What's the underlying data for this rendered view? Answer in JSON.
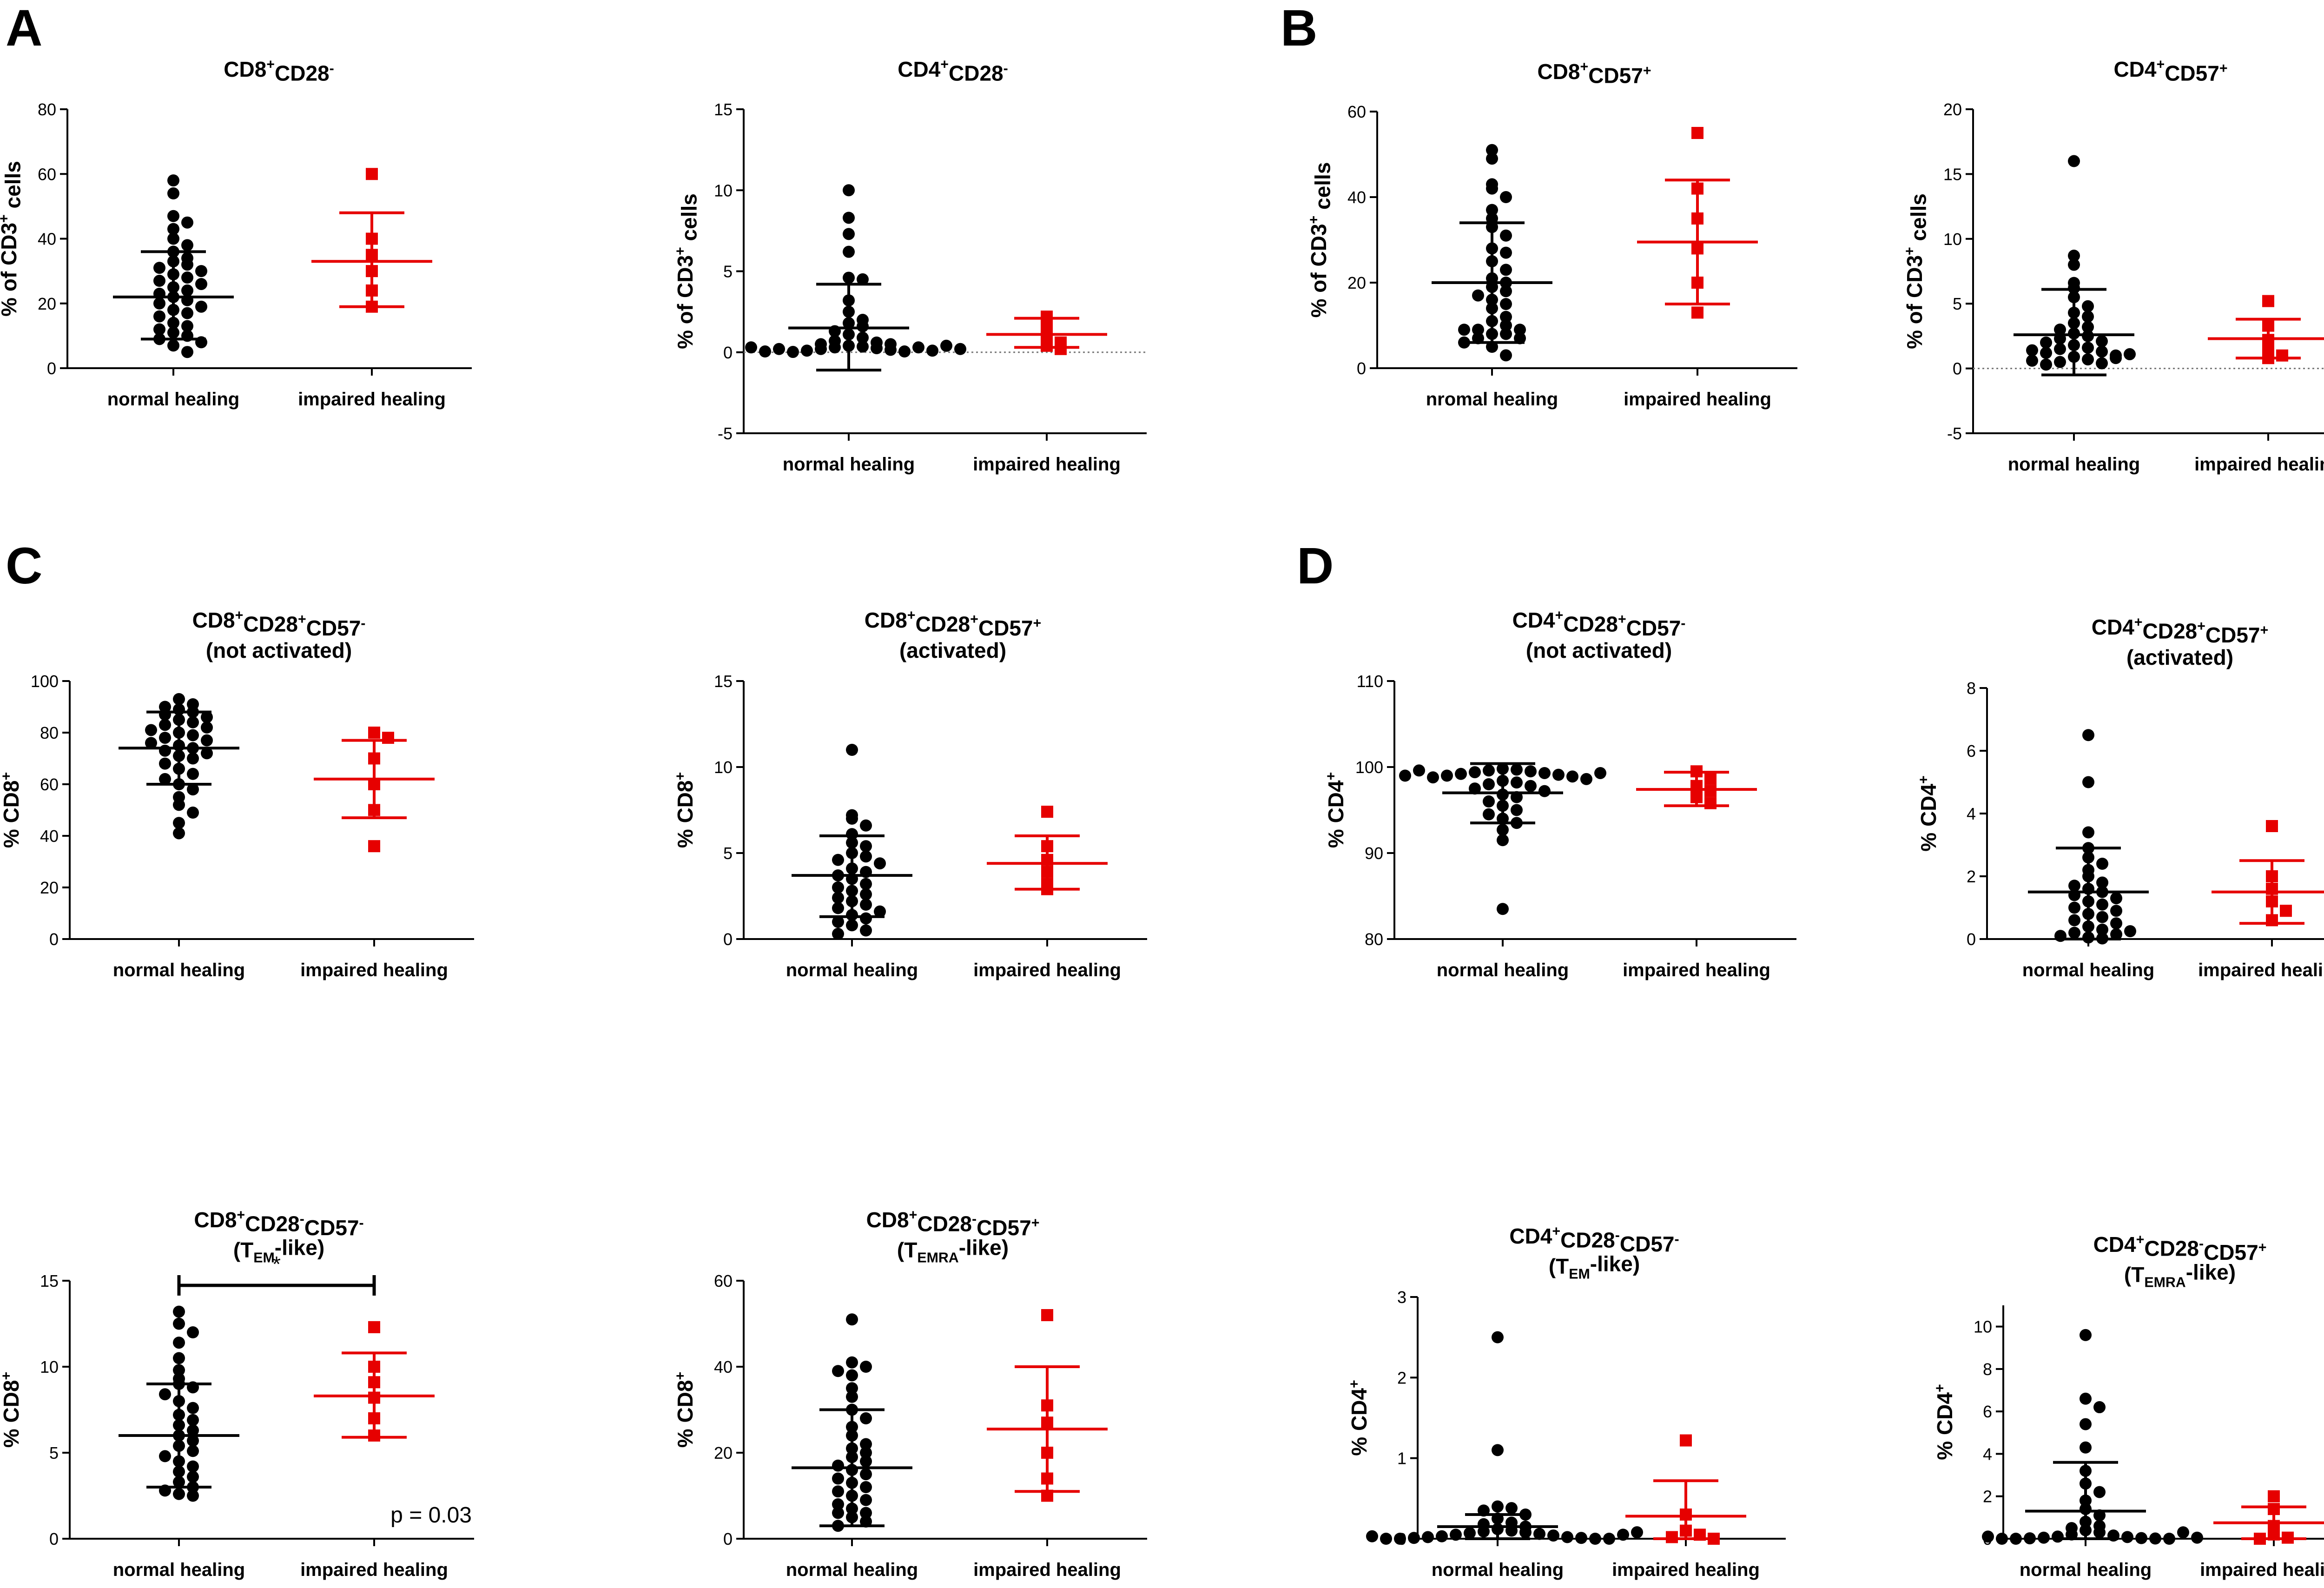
{
  "panel_letters": [
    "A",
    "B",
    "C",
    "D"
  ],
  "colors": {
    "normal": "#000000",
    "impaired": "#e60000",
    "zero_line": "#777777"
  },
  "chart_data": [
    {
      "id": "cd8-cd28neg",
      "type": "scatter",
      "panel": "A",
      "title": [
        "CD8",
        "+",
        "CD28",
        "-"
      ],
      "ylabel": [
        "% of CD3",
        "+",
        " cells"
      ],
      "ylim": [
        0,
        80
      ],
      "yticks": [
        0,
        20,
        40,
        60,
        80
      ],
      "categories": [
        "normal healing",
        "impaired healing"
      ],
      "series": [
        {
          "name": "normal healing",
          "marker": "circle",
          "mean": 22,
          "sd_low": 9,
          "sd_high": 36,
          "values": [
            58,
            54,
            47,
            45,
            43,
            40,
            38,
            36,
            34,
            33,
            32,
            31,
            30,
            29,
            28,
            27,
            26,
            25,
            24,
            23,
            22,
            21,
            20,
            19,
            18,
            17,
            16,
            14,
            13,
            12,
            11,
            10,
            9,
            8,
            7,
            5
          ]
        },
        {
          "name": "impaired healing",
          "marker": "square",
          "mean": 33,
          "sd_low": 19,
          "sd_high": 48,
          "values": [
            60,
            40,
            35,
            30,
            24,
            19
          ]
        }
      ]
    },
    {
      "id": "cd4-cd28neg",
      "type": "scatter",
      "panel": "A",
      "title": [
        "CD4",
        "+",
        "CD28",
        "-"
      ],
      "ylabel": [
        "% of CD3",
        "+",
        " cells"
      ],
      "ylim": [
        -5,
        15
      ],
      "yticks": [
        -5,
        0,
        5,
        10,
        15
      ],
      "zero_line": true,
      "categories": [
        "normal healing",
        "impaired healing"
      ],
      "series": [
        {
          "name": "normal healing",
          "marker": "circle",
          "mean": 1.5,
          "sd_low": -1.1,
          "sd_high": 4.2,
          "values": [
            10,
            8.3,
            7.3,
            6.2,
            4.6,
            4.5,
            3.2,
            2.5,
            2,
            1.8,
            1.6,
            1.3,
            1.1,
            0.9,
            0.7,
            0.6,
            0.5,
            0.4,
            0.35,
            0.3,
            0.25,
            0.2,
            0.15,
            0.1,
            0.05,
            0.02,
            0.3,
            0.2,
            0.1,
            0.05,
            0.5,
            0.4,
            0.3,
            0.2
          ]
        },
        {
          "name": "impaired healing",
          "marker": "square",
          "mean": 1.1,
          "sd_low": 0.3,
          "sd_high": 2.1,
          "values": [
            2.2,
            1.8,
            1.1,
            0.6,
            0.4,
            0.2
          ]
        }
      ]
    },
    {
      "id": "cd8-cd57pos",
      "type": "scatter",
      "panel": "B",
      "title": [
        "CD8",
        "+",
        "CD57",
        "+"
      ],
      "ylabel": [
        "% of CD3",
        "+",
        " cells"
      ],
      "ylim": [
        0,
        60
      ],
      "yticks": [
        0,
        20,
        40,
        60
      ],
      "categories": [
        "nromal healing",
        "impaired healing"
      ],
      "series": [
        {
          "name": "normal healing",
          "marker": "circle",
          "mean": 20,
          "sd_low": 6,
          "sd_high": 34,
          "values": [
            51,
            49,
            43,
            42,
            40,
            37,
            35,
            33,
            31,
            28,
            27,
            25,
            23,
            21,
            20,
            19,
            18,
            17,
            16,
            15,
            14,
            12,
            11,
            10,
            9,
            9,
            9,
            8,
            8,
            7,
            7,
            6,
            5,
            3
          ]
        },
        {
          "name": "impaired healing",
          "marker": "square",
          "mean": 29.5,
          "sd_low": 15,
          "sd_high": 44,
          "values": [
            55,
            42,
            35,
            28,
            20,
            13
          ]
        }
      ]
    },
    {
      "id": "cd4-cd57pos",
      "type": "scatter",
      "panel": "B",
      "title": [
        "CD4",
        "+",
        "CD57",
        "+"
      ],
      "ylabel": [
        "% of CD3",
        "+",
        " cells"
      ],
      "ylim": [
        -5,
        20
      ],
      "yticks": [
        -5,
        0,
        5,
        10,
        15,
        20
      ],
      "zero_line": true,
      "categories": [
        "normal healing",
        "impaired healing"
      ],
      "series": [
        {
          "name": "normal healing",
          "marker": "circle",
          "mean": 2.6,
          "sd_low": -0.5,
          "sd_high": 6.1,
          "values": [
            16,
            8.7,
            8,
            6.6,
            6.2,
            5.5,
            4.8,
            4.3,
            4,
            3.5,
            3.2,
            3,
            2.7,
            2.5,
            2.3,
            2.1,
            2,
            1.8,
            1.6,
            1.5,
            1.3,
            1.2,
            1,
            0.9,
            0.7,
            0.5,
            0.4,
            0.3,
            1.4,
            1.1,
            0.8,
            0.6
          ]
        },
        {
          "name": "impaired healing",
          "marker": "square",
          "mean": 2.3,
          "sd_low": 0.8,
          "sd_high": 3.8,
          "values": [
            5.2,
            3.3,
            2.2,
            1.5,
            1,
            0.8
          ]
        }
      ]
    },
    {
      "id": "cd8-notact",
      "type": "scatter",
      "panel": "C",
      "title": [
        "CD8",
        "+",
        "CD28",
        "+",
        "CD57",
        "-"
      ],
      "subtitle": "(not activated)",
      "ylabel": [
        "% CD8",
        "+",
        ""
      ],
      "ylim": [
        0,
        100
      ],
      "yticks": [
        0,
        20,
        40,
        60,
        80,
        100
      ],
      "categories": [
        "normal healing",
        "impaired healing"
      ],
      "series": [
        {
          "name": "normal healing",
          "marker": "circle",
          "mean": 74,
          "sd_low": 60,
          "sd_high": 88,
          "values": [
            93,
            91,
            90,
            89,
            88,
            87,
            86,
            85,
            84,
            83,
            82,
            81,
            80,
            79,
            78,
            77,
            76,
            75,
            74,
            73,
            72,
            71,
            70,
            68,
            66,
            64,
            62,
            60,
            58,
            55,
            52,
            49,
            45,
            41
          ]
        },
        {
          "name": "impaired healing",
          "marker": "square",
          "mean": 62,
          "sd_low": 47,
          "sd_high": 77,
          "values": [
            80,
            78,
            70,
            60,
            50,
            36
          ]
        }
      ]
    },
    {
      "id": "cd8-act",
      "type": "scatter",
      "panel": "C",
      "title": [
        "CD8",
        "+",
        "CD28",
        "+",
        "CD57",
        "+"
      ],
      "subtitle": "(activated)",
      "ylabel": [
        "% CD8",
        "+",
        ""
      ],
      "ylim": [
        0,
        15
      ],
      "yticks": [
        0,
        5,
        10,
        15
      ],
      "categories": [
        "normal healing",
        "impaired healing"
      ],
      "series": [
        {
          "name": "normal healing",
          "marker": "circle",
          "mean": 3.7,
          "sd_low": 1.3,
          "sd_high": 6,
          "values": [
            11,
            7.2,
            7,
            6.6,
            6.1,
            5.6,
            5.4,
            5,
            4.8,
            4.6,
            4.4,
            4.1,
            3.9,
            3.7,
            3.5,
            3.2,
            3,
            2.8,
            2.6,
            2.4,
            2.2,
            2,
            1.8,
            1.6,
            1.4,
            1.2,
            1,
            0.8,
            0.5,
            0.3
          ]
        },
        {
          "name": "impaired healing",
          "marker": "square",
          "mean": 4.4,
          "sd_low": 2.9,
          "sd_high": 6,
          "values": [
            7.4,
            5.4,
            4.6,
            3.9,
            3.2,
            2.9
          ]
        }
      ]
    },
    {
      "id": "cd4-notact",
      "type": "scatter",
      "panel": "D",
      "title": [
        "CD4",
        "+",
        "CD28",
        "+",
        "CD57",
        "-"
      ],
      "subtitle": "(not activated)",
      "ylabel": [
        "% CD4",
        "+",
        ""
      ],
      "ylim": [
        80,
        110
      ],
      "yticks": [
        80,
        90,
        100,
        110
      ],
      "categories": [
        "normal healing",
        "impaired healing"
      ],
      "series": [
        {
          "name": "normal healing",
          "marker": "circle",
          "mean": 97,
          "sd_low": 93.5,
          "sd_high": 100.4,
          "values": [
            99.8,
            99.7,
            99.6,
            99.5,
            99.4,
            99.3,
            99.2,
            99.1,
            99,
            98.9,
            98.8,
            98.6,
            98.4,
            98.2,
            98,
            97.8,
            97.5,
            97.2,
            96.8,
            96.5,
            96,
            95.5,
            95,
            94.5,
            94,
            93.5,
            92.7,
            91.5,
            83.5,
            99.6,
            99.3,
            99
          ]
        },
        {
          "name": "impaired healing",
          "marker": "square",
          "mean": 97.4,
          "sd_low": 95.5,
          "sd_high": 99.4,
          "values": [
            99.5,
            98.6,
            97.8,
            97.2,
            96.5,
            95.8
          ]
        }
      ]
    },
    {
      "id": "cd4-act",
      "type": "scatter",
      "panel": "D",
      "title": [
        "CD4",
        "+",
        "CD28",
        "+",
        "CD57",
        "+"
      ],
      "subtitle": "(activated)",
      "ylabel": [
        "% CD4",
        "+",
        ""
      ],
      "ylim": [
        0,
        8
      ],
      "yticks": [
        0,
        2,
        4,
        6,
        8
      ],
      "categories": [
        "normal healing",
        "impaired healing"
      ],
      "series": [
        {
          "name": "normal healing",
          "marker": "circle",
          "mean": 1.5,
          "sd_low": 0,
          "sd_high": 2.9,
          "values": [
            6.5,
            5,
            3.4,
            2.9,
            2.6,
            2.4,
            2.2,
            2.0,
            1.8,
            1.7,
            1.6,
            1.5,
            1.4,
            1.3,
            1.2,
            1.1,
            1,
            0.9,
            0.8,
            0.7,
            0.6,
            0.5,
            0.4,
            0.3,
            0.2,
            0.15,
            0.1,
            0.05,
            0.02,
            0.25
          ]
        },
        {
          "name": "impaired healing",
          "marker": "square",
          "mean": 1.5,
          "sd_low": 0.5,
          "sd_high": 2.5,
          "values": [
            3.6,
            2,
            1.6,
            1.2,
            0.9,
            0.6
          ]
        }
      ]
    },
    {
      "id": "cd8-tem",
      "type": "scatter",
      "panel": "C",
      "title": [
        "CD8",
        "+",
        "CD28",
        "-",
        "CD57",
        "-"
      ],
      "subtitle_parts": [
        "(T",
        "EM",
        "-like)"
      ],
      "ylabel": [
        "% CD8",
        "+",
        ""
      ],
      "ylim": [
        0,
        15
      ],
      "yticks": [
        0,
        5,
        10,
        15
      ],
      "significance": {
        "label": "*",
        "p_text": "p = 0.03"
      },
      "categories": [
        "normal healing",
        "impaired healing"
      ],
      "series": [
        {
          "name": "normal healing",
          "marker": "circle",
          "mean": 6,
          "sd_low": 3,
          "sd_high": 9,
          "values": [
            13.2,
            12.5,
            12,
            11.4,
            10.5,
            9.8,
            9.3,
            9,
            8.8,
            8.4,
            8,
            7.6,
            7.2,
            6.9,
            6.6,
            6.3,
            6,
            5.7,
            5.4,
            5.1,
            4.8,
            4.5,
            4.2,
            3.9,
            3.6,
            3.3,
            3,
            2.8,
            2.6,
            2.5
          ]
        },
        {
          "name": "impaired healing",
          "marker": "square",
          "mean": 8.3,
          "sd_low": 5.9,
          "sd_high": 10.8,
          "values": [
            12.3,
            10,
            9.1,
            8.2,
            7,
            6
          ]
        }
      ]
    },
    {
      "id": "cd8-temra",
      "type": "scatter",
      "panel": "C",
      "title": [
        "CD8",
        "+",
        "CD28",
        "-",
        "CD57",
        "+"
      ],
      "subtitle_parts": [
        "(T",
        "EMRA",
        "-like)"
      ],
      "ylabel": [
        "% CD8",
        "+",
        ""
      ],
      "ylim": [
        0,
        60
      ],
      "yticks": [
        0,
        20,
        40,
        60
      ],
      "categories": [
        "normal healing",
        "impaired healing"
      ],
      "series": [
        {
          "name": "normal healing",
          "marker": "circle",
          "mean": 16.5,
          "sd_low": 3,
          "sd_high": 30,
          "values": [
            51,
            41,
            40,
            39,
            38,
            35,
            33,
            30,
            28,
            26,
            24,
            22,
            21,
            20,
            19,
            18,
            17,
            16,
            15,
            14,
            13,
            12,
            11,
            10,
            9,
            8,
            7,
            6,
            6,
            5,
            4,
            3
          ]
        },
        {
          "name": "impaired healing",
          "marker": "square",
          "mean": 25.5,
          "sd_low": 11,
          "sd_high": 40,
          "values": [
            52,
            31,
            27,
            20,
            14,
            10
          ]
        }
      ]
    },
    {
      "id": "cd4-tem",
      "type": "scatter",
      "panel": "D",
      "title": [
        "CD4",
        "+",
        "CD28",
        "-",
        "CD57",
        "-"
      ],
      "subtitle_parts": [
        "(T",
        "EM",
        "-like)"
      ],
      "ylabel": [
        "% CD4",
        "+",
        ""
      ],
      "ylim": [
        0,
        3
      ],
      "yticks": [
        0,
        1,
        2,
        3
      ],
      "categories": [
        "normal healing",
        "impaired healing"
      ],
      "series": [
        {
          "name": "normal healing",
          "marker": "circle",
          "mean": 0.15,
          "sd_low": 0,
          "sd_high": 0.3,
          "values": [
            2.5,
            1.1,
            0.4,
            0.38,
            0.35,
            0.3,
            0.25,
            0.2,
            0.18,
            0.15,
            0.12,
            0.1,
            0.09,
            0.08,
            0.07,
            0.06,
            0.05,
            0.04,
            0.03,
            0.02,
            0.02,
            0.01,
            0.01,
            0,
            0,
            0,
            0,
            0.05,
            0.03,
            0.08
          ]
        },
        {
          "name": "impaired healing",
          "marker": "square",
          "mean": 0.28,
          "sd_low": 0,
          "sd_high": 0.72,
          "values": [
            1.22,
            0.3,
            0.1,
            0.05,
            0.02,
            0
          ]
        }
      ]
    },
    {
      "id": "cd4-temra",
      "type": "scatter",
      "panel": "D",
      "title": [
        "CD4",
        "+",
        "CD28",
        "-",
        "CD57",
        "+"
      ],
      "subtitle_parts": [
        "(T",
        "EMRA",
        "-like)"
      ],
      "ylabel": [
        "% CD4",
        "+",
        ""
      ],
      "ylim": [
        0,
        11
      ],
      "yticks": [
        0,
        2,
        4,
        6,
        8,
        10
      ],
      "categories": [
        "normal healing",
        "impaired healing"
      ],
      "series": [
        {
          "name": "normal healing",
          "marker": "circle",
          "mean": 1.3,
          "sd_low": 0,
          "sd_high": 3.6,
          "values": [
            9.6,
            6.6,
            6.2,
            5.4,
            4.3,
            3.2,
            2.6,
            2.2,
            1.8,
            1.4,
            1.1,
            0.8,
            0.6,
            0.4,
            0.3,
            0.2,
            0.15,
            0.1,
            0.08,
            0.05,
            0.03,
            0.02,
            0.01,
            0,
            0,
            0,
            0.5,
            0.3,
            0.1,
            0.05
          ]
        },
        {
          "name": "impaired healing",
          "marker": "square",
          "mean": 0.75,
          "sd_low": 0,
          "sd_high": 1.5,
          "values": [
            2,
            1.4,
            0.6,
            0.2,
            0.05,
            0
          ]
        }
      ]
    }
  ]
}
